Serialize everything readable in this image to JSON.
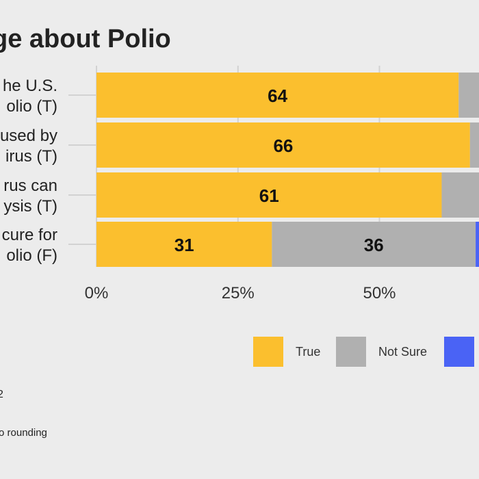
{
  "chart_data": {
    "type": "bar",
    "stacked": true,
    "orientation": "horizontal",
    "title": "ge about Polio",
    "categories": [
      [
        "he U.S.",
        "olio (T)"
      ],
      [
        "used by",
        "irus (T)"
      ],
      [
        "rus can",
        "ysis (T)"
      ],
      [
        "cure for",
        "olio (F)"
      ]
    ],
    "series": [
      {
        "name": "True",
        "color": "#fbbf2e",
        "values": [
          64,
          66,
          61,
          31
        ]
      },
      {
        "name": "Not Sure",
        "color": "#b0b0b0",
        "values": [
          null,
          null,
          null,
          36
        ]
      },
      {
        "name": "",
        "color": "#4a63f5",
        "values": [
          null,
          null,
          null,
          null
        ]
      }
    ],
    "xlim": [
      0,
      100
    ],
    "x_ticks": [
      "0%",
      "25%",
      "50%"
    ],
    "grid": true,
    "legend_position": "bottom"
  },
  "notes": {
    "line1": "2",
    "line2": "o rounding"
  }
}
